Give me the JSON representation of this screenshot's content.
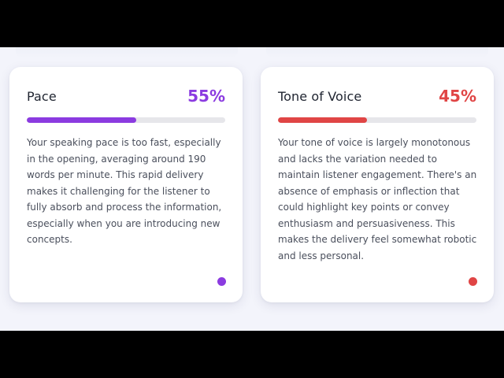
{
  "colors": {
    "pace_accent": "#8b3be0",
    "tone_accent": "#e04545"
  },
  "cards": [
    {
      "title": "Pace",
      "score_label": "55%",
      "progress": 0.55,
      "accent": "#8b3be0",
      "description": "Your speaking pace is too fast, especially in the opening, averaging around 190 words per minute. This rapid delivery makes it challenging for the listener to fully absorb and process the information, especially when you are introducing new concepts."
    },
    {
      "title": "Tone of Voice",
      "score_label": "45%",
      "progress": 0.45,
      "accent": "#e04545",
      "description": "Your tone of voice is largely monotonous and lacks the variation needed to maintain listener engagement. There's an absence of emphasis or inflection that could highlight key points or convey enthusiasm and persuasiveness. This makes the delivery feel somewhat robotic and less personal."
    }
  ]
}
